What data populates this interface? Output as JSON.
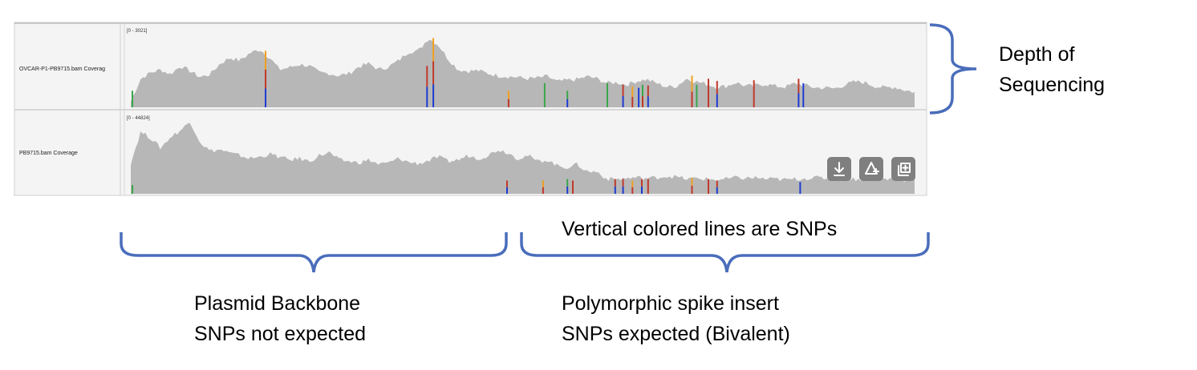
{
  "tracks": [
    {
      "label": "OVCAR-P1-PB9715.bam Coverag",
      "range": "[0 - 3021]",
      "profile": [
        0.08,
        0.38,
        0.46,
        0.5,
        0.44,
        0.55,
        0.48,
        0.4,
        0.44,
        0.58,
        0.66,
        0.62,
        0.72,
        0.77,
        0.66,
        0.5,
        0.53,
        0.57,
        0.55,
        0.46,
        0.45,
        0.42,
        0.45,
        0.54,
        0.58,
        0.5,
        0.54,
        0.62,
        0.74,
        0.75,
        0.92,
        0.83,
        0.64,
        0.5,
        0.48,
        0.49,
        0.45,
        0.42,
        0.41,
        0.4,
        0.38,
        0.39,
        0.41,
        0.34,
        0.36,
        0.37,
        0.41,
        0.38,
        0.32,
        0.33,
        0.3,
        0.35,
        0.37,
        0.32,
        0.27,
        0.28,
        0.38,
        0.34,
        0.31,
        0.27,
        0.28,
        0.33,
        0.28,
        0.29,
        0.31,
        0.28,
        0.27,
        0.32,
        0.29,
        0.26,
        0.26,
        0.25,
        0.3,
        0.34,
        0.33,
        0.28,
        0.26,
        0.27,
        0.23,
        0.2
      ],
      "snps": [
        {
          "x": 0.002,
          "h": 0.22,
          "c": [
            "#3aa64a"
          ]
        },
        {
          "x": 0.172,
          "h": 0.75,
          "c": [
            "#1e3bd1",
            "#c0392b",
            "#f0a020"
          ]
        },
        {
          "x": 0.378,
          "h": 0.55,
          "c": [
            "#1e3bd1",
            "#c0392b"
          ]
        },
        {
          "x": 0.386,
          "h": 0.92,
          "c": [
            "#1e3bd1",
            "#c0392b",
            "#f0a020"
          ]
        },
        {
          "x": 0.482,
          "h": 0.22,
          "c": [
            "#c0392b",
            "#f0a020"
          ]
        },
        {
          "x": 0.528,
          "h": 0.32,
          "c": [
            "#3aa64a"
          ]
        },
        {
          "x": 0.557,
          "h": 0.22,
          "c": [
            "#1e3bd1",
            "#3aa64a"
          ]
        },
        {
          "x": 0.608,
          "h": 0.32,
          "c": [
            "#3aa64a"
          ]
        },
        {
          "x": 0.628,
          "h": 0.3,
          "c": [
            "#1e3bd1",
            "#c0392b"
          ]
        },
        {
          "x": 0.64,
          "h": 0.28,
          "c": [
            "#c0392b",
            "#f0a020"
          ]
        },
        {
          "x": 0.648,
          "h": 0.26,
          "c": [
            "#1e3bd1"
          ]
        },
        {
          "x": 0.653,
          "h": 0.3,
          "c": [
            "#c0392b",
            "#3aa64a"
          ]
        },
        {
          "x": 0.66,
          "h": 0.29,
          "c": [
            "#1e3bd1",
            "#c0392b"
          ]
        },
        {
          "x": 0.716,
          "h": 0.42,
          "c": [
            "#c0392b",
            "#f0a020"
          ]
        },
        {
          "x": 0.722,
          "h": 0.3,
          "c": [
            "#3aa64a"
          ]
        },
        {
          "x": 0.737,
          "h": 0.38,
          "c": [
            "#c0392b"
          ]
        },
        {
          "x": 0.748,
          "h": 0.35,
          "c": [
            "#1e3bd1",
            "#c0392b"
          ]
        },
        {
          "x": 0.795,
          "h": 0.36,
          "c": [
            "#c0392b"
          ]
        },
        {
          "x": 0.852,
          "h": 0.38,
          "c": [
            "#1e3bd1",
            "#c0392b"
          ]
        },
        {
          "x": 0.858,
          "h": 0.32,
          "c": [
            "#1e3bd1"
          ]
        }
      ]
    },
    {
      "label": "PB9715.bam Coverage",
      "range": "[0 - 44824]",
      "profile": [
        0.42,
        0.84,
        0.76,
        0.62,
        0.77,
        0.86,
        0.98,
        0.7,
        0.58,
        0.6,
        0.55,
        0.52,
        0.48,
        0.5,
        0.54,
        0.5,
        0.46,
        0.48,
        0.44,
        0.52,
        0.56,
        0.46,
        0.44,
        0.42,
        0.46,
        0.4,
        0.42,
        0.48,
        0.43,
        0.41,
        0.45,
        0.5,
        0.44,
        0.46,
        0.52,
        0.48,
        0.52,
        0.6,
        0.56,
        0.48,
        0.52,
        0.44,
        0.46,
        0.38,
        0.36,
        0.4,
        0.3,
        0.3,
        0.2,
        0.2,
        0.21,
        0.22,
        0.21,
        0.22,
        0.24,
        0.23,
        0.2,
        0.21,
        0.2,
        0.19,
        0.2,
        0.22,
        0.21,
        0.22,
        0.2,
        0.2,
        0.19,
        0.2,
        0.21,
        0.22,
        0.21,
        0.2,
        0.21,
        0.2,
        0.2,
        0.21,
        0.2,
        0.2,
        0.19,
        0.2
      ],
      "snps": [
        {
          "x": 0.002,
          "h": 0.12,
          "c": [
            "#3aa64a"
          ]
        },
        {
          "x": 0.48,
          "h": 0.18,
          "c": [
            "#1e3bd1",
            "#c0392b"
          ]
        },
        {
          "x": 0.526,
          "h": 0.18,
          "c": [
            "#c0392b",
            "#f0a020"
          ]
        },
        {
          "x": 0.557,
          "h": 0.2,
          "c": [
            "#1e3bd1",
            "#3aa64a"
          ]
        },
        {
          "x": 0.564,
          "h": 0.18,
          "c": [
            "#c0392b"
          ]
        },
        {
          "x": 0.618,
          "h": 0.2,
          "c": [
            "#1e3bd1",
            "#c0392b"
          ]
        },
        {
          "x": 0.628,
          "h": 0.2,
          "c": [
            "#1e3bd1",
            "#c0392b"
          ]
        },
        {
          "x": 0.64,
          "h": 0.18,
          "c": [
            "#c0392b",
            "#f0a020"
          ]
        },
        {
          "x": 0.652,
          "h": 0.2,
          "c": [
            "#1e3bd1",
            "#c0392b"
          ]
        },
        {
          "x": 0.66,
          "h": 0.2,
          "c": [
            "#c0392b"
          ]
        },
        {
          "x": 0.716,
          "h": 0.22,
          "c": [
            "#c0392b",
            "#f0a020"
          ]
        },
        {
          "x": 0.737,
          "h": 0.2,
          "c": [
            "#c0392b"
          ]
        },
        {
          "x": 0.748,
          "h": 0.18,
          "c": [
            "#1e3bd1",
            "#c0392b"
          ]
        },
        {
          "x": 0.854,
          "h": 0.16,
          "c": [
            "#1e3bd1"
          ]
        }
      ]
    }
  ],
  "tools": [
    {
      "name": "download-icon"
    },
    {
      "name": "flip-icon"
    },
    {
      "name": "add-track-icon"
    }
  ],
  "colors": {
    "coverage_fill": "#b7b7b7",
    "bracket": "#4a6dbb",
    "panel_bg": "#f4f4f4",
    "tool_bg": "#7f7f7f"
  },
  "annotations": {
    "depth": [
      "Depth of",
      "Sequencing"
    ],
    "snps": "Vertical colored lines are SNPs",
    "backbone": [
      "Plasmid Backbone",
      "SNPs not expected"
    ],
    "spike": [
      "Polymorphic spike insert",
      "SNPs expected (Bivalent)"
    ]
  }
}
